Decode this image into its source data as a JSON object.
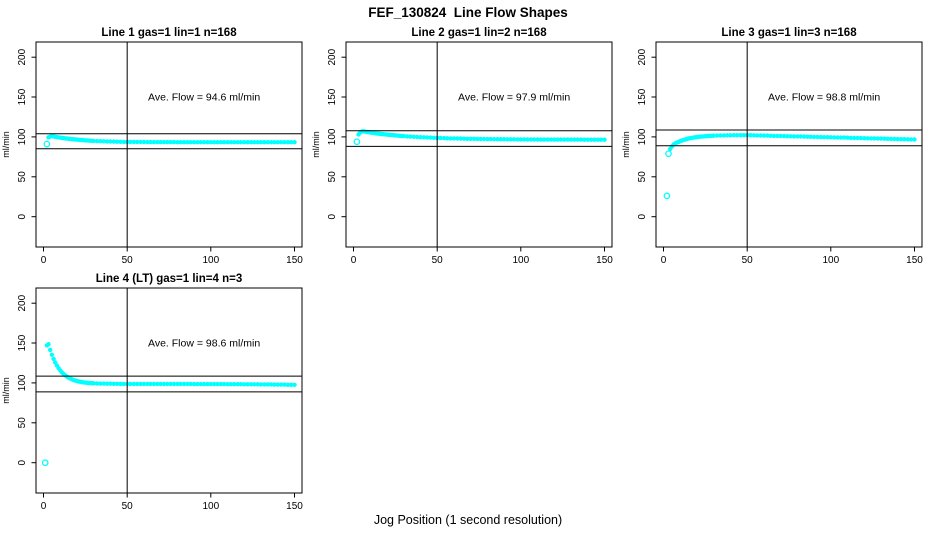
{
  "figure": {
    "title": "FEF_130824  Line Flow Shapes",
    "xlabel": "Jog Position (1 second resolution)"
  },
  "colors": {
    "points": "#00ffff",
    "axis": "#000000",
    "background": "#ffffff"
  },
  "axes": {
    "ylabel": "ml/min",
    "x_ticks": [
      0,
      50,
      100,
      150
    ],
    "y_ticks": [
      0,
      50,
      100,
      150,
      200
    ],
    "x_range": [
      -4.5,
      154.5
    ],
    "y_range": [
      -38,
      219
    ],
    "vline_x": 50,
    "grid": false,
    "legend": "none"
  },
  "chart_data": [
    {
      "type": "scatter",
      "title": "Line 1 gas=1 lin=1 n=168",
      "annotation": "Ave. Flow =  94.6  ml/min",
      "avg_flow": 94.6,
      "hlines": [
        104.1,
        85.1
      ],
      "pre_points": [
        [
          2,
          91
        ]
      ],
      "x": [
        3,
        4,
        5,
        6,
        7,
        8,
        9,
        10,
        11,
        12,
        13,
        14,
        15,
        16,
        17,
        18,
        19,
        20,
        21,
        22,
        23,
        24,
        25,
        26,
        27,
        28,
        29,
        30,
        32,
        34,
        36,
        38,
        40,
        42,
        44,
        46,
        48,
        50,
        52,
        54,
        56,
        58,
        60,
        62,
        64,
        66,
        68,
        70,
        72,
        74,
        76,
        78,
        80,
        82,
        84,
        86,
        88,
        90,
        92,
        94,
        96,
        98,
        100,
        102,
        104,
        106,
        108,
        110,
        112,
        114,
        116,
        118,
        120,
        122,
        124,
        126,
        128,
        130,
        132,
        134,
        136,
        138,
        140,
        142,
        144,
        146,
        148,
        150
      ],
      "y": [
        99.5,
        100.4,
        101,
        100.6,
        100.2,
        99.8,
        99.4,
        99.1,
        98.8,
        98.5,
        98.2,
        98,
        97.7,
        97.5,
        97.2,
        97,
        96.8,
        96.6,
        96.4,
        96.2,
        96.1,
        95.9,
        95.7,
        95.6,
        95.4,
        95.3,
        95.2,
        95,
        94.8,
        94.6,
        94.5,
        94.3,
        94.2,
        94.1,
        94,
        93.9,
        93.8,
        93.8,
        93.7,
        93.7,
        93.6,
        93.6,
        93.6,
        93.5,
        93.5,
        93.5,
        93.5,
        93.5,
        93.5,
        93.5,
        93.5,
        93.5,
        93.4,
        93.4,
        93.4,
        93.4,
        93.4,
        93.4,
        93.4,
        93.4,
        93.4,
        93.4,
        93.4,
        93.4,
        93.4,
        93.4,
        93.4,
        93.4,
        93.4,
        93.4,
        93.4,
        93.4,
        93.4,
        93.4,
        93.4,
        93.4,
        93.4,
        93.4,
        93.4,
        93.4,
        93.4,
        93.4,
        93.4,
        93.4,
        93.4,
        93.4,
        93.4,
        93.4
      ]
    },
    {
      "type": "scatter",
      "title": "Line 2 gas=1 lin=2 n=168",
      "annotation": "Ave. Flow =  97.9  ml/min",
      "avg_flow": 97.9,
      "hlines": [
        107.7,
        88.1
      ],
      "pre_points": [
        [
          2,
          94
        ]
      ],
      "x": [
        3,
        4,
        5,
        6,
        7,
        8,
        9,
        10,
        11,
        12,
        13,
        14,
        15,
        16,
        17,
        18,
        19,
        20,
        21,
        22,
        23,
        24,
        25,
        26,
        27,
        28,
        29,
        30,
        32,
        34,
        36,
        38,
        40,
        42,
        44,
        46,
        48,
        50,
        52,
        54,
        56,
        58,
        60,
        62,
        64,
        66,
        68,
        70,
        72,
        74,
        76,
        78,
        80,
        82,
        84,
        86,
        88,
        90,
        92,
        94,
        96,
        98,
        100,
        102,
        104,
        106,
        108,
        110,
        112,
        114,
        116,
        118,
        120,
        122,
        124,
        126,
        128,
        130,
        132,
        134,
        136,
        138,
        140,
        142,
        144,
        146,
        148,
        150
      ],
      "y": [
        103,
        105.5,
        106.8,
        107,
        106.6,
        106.3,
        105.9,
        105.6,
        105.3,
        105,
        104.7,
        104.4,
        104.1,
        103.9,
        103.6,
        103.4,
        103.1,
        102.9,
        102.7,
        102.5,
        102.3,
        102.1,
        101.9,
        101.7,
        101.5,
        101.3,
        101.2,
        101,
        100.7,
        100.4,
        100.2,
        99.9,
        99.7,
        99.5,
        99.3,
        99.1,
        98.9,
        98.8,
        98.6,
        98.5,
        98.3,
        98.2,
        98.1,
        98,
        97.9,
        97.8,
        97.7,
        97.7,
        97.6,
        97.5,
        97.4,
        97.4,
        97.3,
        97.3,
        97.2,
        97.2,
        97.1,
        97.1,
        97,
        97,
        97,
        96.9,
        96.9,
        96.9,
        96.8,
        96.8,
        96.8,
        96.8,
        96.7,
        96.7,
        96.7,
        96.7,
        96.7,
        96.7,
        96.6,
        96.6,
        96.6,
        96.6,
        96.6,
        96.6,
        96.6,
        96.5,
        96.5,
        96.5,
        96.5,
        96.5,
        96.5,
        96.5
      ]
    },
    {
      "type": "scatter",
      "title": "Line 3 gas=1 lin=3 n=168",
      "annotation": "Ave. Flow =  98.8  ml/min",
      "avg_flow": 98.8,
      "hlines": [
        108.7,
        88.9
      ],
      "pre_points": [
        [
          2,
          26
        ],
        [
          3,
          79
        ]
      ],
      "x": [
        4,
        5,
        6,
        7,
        8,
        9,
        10,
        11,
        12,
        13,
        14,
        15,
        16,
        17,
        18,
        19,
        20,
        21,
        22,
        23,
        24,
        25,
        26,
        27,
        28,
        29,
        30,
        32,
        34,
        36,
        38,
        40,
        42,
        44,
        46,
        48,
        50,
        52,
        54,
        56,
        58,
        60,
        62,
        64,
        66,
        68,
        70,
        72,
        74,
        76,
        78,
        80,
        82,
        84,
        86,
        88,
        90,
        92,
        94,
        96,
        98,
        100,
        102,
        104,
        106,
        108,
        110,
        112,
        114,
        116,
        118,
        120,
        122,
        124,
        126,
        128,
        130,
        132,
        134,
        136,
        138,
        140,
        142,
        144,
        146,
        148,
        150
      ],
      "y": [
        85,
        88,
        90.5,
        91.7,
        92.9,
        93.8,
        94.7,
        95.5,
        96.3,
        96.9,
        97.5,
        98,
        98.4,
        98.8,
        99.2,
        99.5,
        99.8,
        100.1,
        100.3,
        100.5,
        100.7,
        100.9,
        101,
        101.2,
        101.3,
        101.4,
        101.5,
        101.7,
        101.8,
        101.9,
        102,
        102,
        102.1,
        102.1,
        102.1,
        102.2,
        102.2,
        102.1,
        102,
        101.9,
        101.8,
        101.7,
        101.6,
        101.4,
        101.3,
        101.2,
        101.1,
        101,
        100.9,
        100.8,
        100.7,
        100.6,
        100.5,
        100.4,
        100.3,
        100.1,
        100,
        99.9,
        99.8,
        99.7,
        99.6,
        99.5,
        99.4,
        99.3,
        99.2,
        99.1,
        99,
        98.8,
        98.7,
        98.6,
        98.5,
        98.4,
        98.3,
        98.2,
        98.1,
        98,
        97.9,
        97.8,
        97.7,
        97.5,
        97.4,
        97.3,
        97.2,
        97.1,
        97,
        96.9,
        96.8
      ]
    },
    {
      "type": "scatter",
      "title": "Line 4 (LT) gas=1 lin=4 n=3",
      "annotation": "Ave. Flow =  98.6  ml/min",
      "avg_flow": 98.6,
      "hlines": [
        108.5,
        88.7
      ],
      "pre_points": [
        [
          1,
          0
        ]
      ],
      "x": [
        2,
        3,
        4,
        5,
        6,
        7,
        8,
        9,
        10,
        11,
        12,
        13,
        14,
        15,
        16,
        17,
        18,
        19,
        20,
        21,
        22,
        23,
        24,
        25,
        26,
        27,
        28,
        29,
        30,
        32,
        34,
        36,
        38,
        40,
        42,
        44,
        46,
        48,
        50,
        52,
        54,
        56,
        58,
        60,
        62,
        64,
        66,
        68,
        70,
        72,
        74,
        76,
        78,
        80,
        82,
        84,
        86,
        88,
        90,
        92,
        94,
        96,
        98,
        100,
        102,
        104,
        106,
        108,
        110,
        112,
        114,
        116,
        118,
        120,
        122,
        124,
        126,
        128,
        130,
        132,
        134,
        136,
        138,
        140,
        142,
        144,
        146,
        148,
        150
      ],
      "y": [
        147,
        148.5,
        141.4,
        135.3,
        130.1,
        125.6,
        121.8,
        118.5,
        115.6,
        113.2,
        111.2,
        109.4,
        107.9,
        106.6,
        105.4,
        104.5,
        103.6,
        102.9,
        102.3,
        101.8,
        101.4,
        101,
        100.7,
        100.4,
        100.1,
        99.9,
        99.8,
        99.6,
        99.5,
        99.3,
        99.2,
        99.1,
        99,
        99,
        98.9,
        98.9,
        98.8,
        98.8,
        98.7,
        98.7,
        98.7,
        98.7,
        98.7,
        98.7,
        98.7,
        98.7,
        98.7,
        98.7,
        98.6,
        98.6,
        98.6,
        98.6,
        98.6,
        98.6,
        98.6,
        98.6,
        98.6,
        98.6,
        98.5,
        98.5,
        98.5,
        98.5,
        98.5,
        98.5,
        98.5,
        98.5,
        98.5,
        98.5,
        98.4,
        98.4,
        98.4,
        98.4,
        98.4,
        98.3,
        98.3,
        98.3,
        98.3,
        98.3,
        98.1,
        98.1,
        98.1,
        98.1,
        97.9,
        97.9,
        97.9,
        97.9,
        97.7,
        97.7,
        97.7
      ]
    }
  ]
}
